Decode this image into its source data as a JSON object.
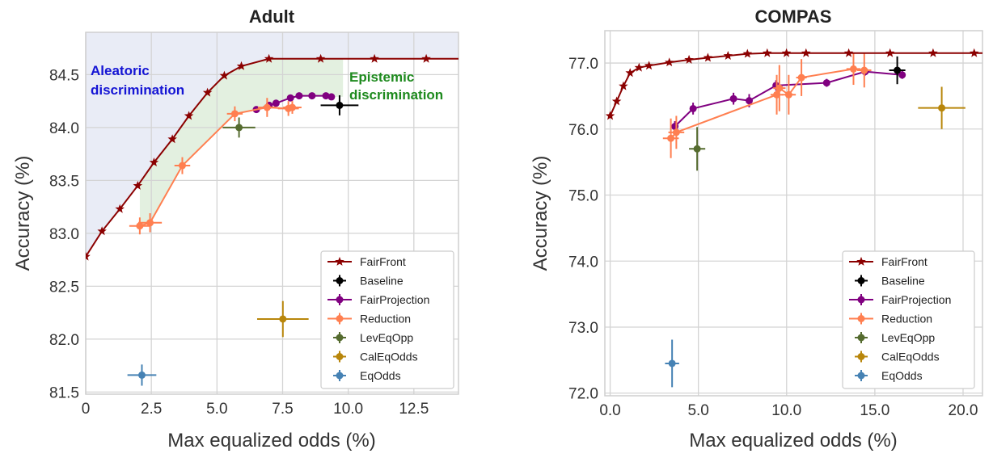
{
  "chart_data": [
    {
      "type": "scatter",
      "title": "Adult",
      "xlabel": "Max equalized odds (%)",
      "ylabel": "Accuracy (%)",
      "xlim": [
        0,
        14.2
      ],
      "ylim": [
        81.48,
        84.9
      ],
      "xticks": [
        0,
        2.5,
        5.0,
        7.5,
        10.0,
        12.5
      ],
      "xtick_labels": [
        "0",
        "2.5",
        "5.0",
        "7.5",
        "10.0",
        "12.5"
      ],
      "yticks": [
        81.5,
        82.0,
        82.5,
        83.0,
        83.5,
        84.0,
        84.5
      ],
      "ytick_labels": [
        "81.5",
        "82.0",
        "82.5",
        "83.0",
        "83.5",
        "84.0",
        "84.5"
      ],
      "grid": true,
      "legend_position": "bottom-right",
      "annotations": [
        {
          "text": [
            "Aleatoric",
            "discrimination"
          ],
          "color": "#1414d4"
        },
        {
          "text": [
            "Epistemic",
            "discrimination"
          ],
          "color": "#1e8a1e"
        }
      ],
      "shading": {
        "aleatoric_color": "#e9ecf6",
        "epistemic_color": "#e3f0e0"
      },
      "series": [
        {
          "name": "FairFront",
          "color": "#8b0000",
          "marker": "star",
          "line": true,
          "x": [
            0,
            0.62,
            1.3,
            1.98,
            2.6,
            3.3,
            3.93,
            4.64,
            5.28,
            5.93,
            6.98,
            8.95,
            11.0,
            12.97,
            14.2
          ],
          "y": [
            82.78,
            83.02,
            83.23,
            83.45,
            83.67,
            83.89,
            84.11,
            84.33,
            84.49,
            84.58,
            84.65,
            84.65,
            84.65,
            84.65,
            84.65
          ],
          "markers_skip_last": true
        },
        {
          "name": "Baseline",
          "color": "#000000",
          "marker": "circle",
          "line": false,
          "x": [
            9.67
          ],
          "y": [
            84.21
          ],
          "xerr": [
            0.72
          ],
          "yerr": [
            0.095
          ]
        },
        {
          "name": "FairProjection",
          "color": "#800080",
          "marker": "circle",
          "line": true,
          "x": [
            6.5,
            6.99,
            7.25,
            7.8,
            8.13,
            8.62,
            9.15,
            9.36
          ],
          "y": [
            84.17,
            84.21,
            84.23,
            84.28,
            84.3,
            84.3,
            84.3,
            84.29
          ]
        },
        {
          "name": "Reduction",
          "color": "#ff7f50",
          "marker": "circle",
          "line": true,
          "x": [
            2.06,
            2.45,
            3.68,
            5.68,
            6.91,
            7.72,
            7.87
          ],
          "y": [
            83.07,
            83.1,
            83.64,
            84.13,
            84.19,
            84.18,
            84.19
          ],
          "xerr": [
            0.4,
            0.45,
            0.3,
            0.3,
            0.35,
            0.4,
            0.35
          ],
          "yerr": [
            0.08,
            0.09,
            0.08,
            0.07,
            0.09,
            0.07,
            0.06
          ]
        },
        {
          "name": "LevEqOpp",
          "color": "#556b2f",
          "marker": "circle",
          "line": false,
          "x": [
            5.84
          ],
          "y": [
            84.0
          ],
          "xerr": [
            0.62
          ],
          "yerr": [
            0.095
          ]
        },
        {
          "name": "CalEqOdds",
          "color": "#b8860b",
          "marker": "circle",
          "line": false,
          "x": [
            7.51
          ],
          "y": [
            82.19
          ],
          "xerr": [
            0.98
          ],
          "yerr": [
            0.17
          ]
        },
        {
          "name": "EqOdds",
          "color": "#4682b4",
          "marker": "circle",
          "line": false,
          "x": [
            2.14
          ],
          "y": [
            81.66
          ],
          "xerr": [
            0.55
          ],
          "yerr": [
            0.1
          ]
        }
      ]
    },
    {
      "type": "scatter",
      "title": "COMPAS",
      "xlabel": "Max equalized odds (%)",
      "ylabel": "Accuracy (%)",
      "xlim": [
        -0.3,
        21.1
      ],
      "ylim": [
        71.96,
        77.49
      ],
      "xticks": [
        0,
        5,
        10,
        15,
        20
      ],
      "xtick_labels": [
        "0.0",
        "5.0",
        "10.0",
        "15.0",
        "20.0"
      ],
      "yticks": [
        72,
        73,
        74,
        75,
        76,
        77
      ],
      "ytick_labels": [
        "72.0",
        "73.0",
        "74.0",
        "75.0",
        "76.0",
        "77.0"
      ],
      "grid": true,
      "legend_position": "bottom-right",
      "series": [
        {
          "name": "FairFront",
          "color": "#8b0000",
          "marker": "star",
          "line": true,
          "x": [
            0,
            0.37,
            0.75,
            1.13,
            1.64,
            2.2,
            3.35,
            4.47,
            5.54,
            6.68,
            7.78,
            8.9,
            9.99,
            11.1,
            13.52,
            15.86,
            18.3,
            20.63,
            21.1
          ],
          "y": [
            76.2,
            76.42,
            76.65,
            76.85,
            76.93,
            76.96,
            77.01,
            77.05,
            77.08,
            77.11,
            77.14,
            77.15,
            77.15,
            77.15,
            77.15,
            77.15,
            77.15,
            77.15,
            77.15
          ],
          "markers_skip_last": true
        },
        {
          "name": "Baseline",
          "color": "#000000",
          "marker": "circle",
          "line": false,
          "x": [
            16.27
          ],
          "y": [
            76.89
          ],
          "xerr": [
            0.46
          ],
          "yerr": [
            0.21
          ]
        },
        {
          "name": "FairProjection",
          "color": "#800080",
          "marker": "circle",
          "line": true,
          "x": [
            3.67,
            4.7,
            6.99,
            7.88,
            9.4,
            12.27,
            14.45,
            16.55
          ],
          "y": [
            76.04,
            76.31,
            76.46,
            76.43,
            76.66,
            76.7,
            76.87,
            76.82
          ],
          "xerr": [
            0.1,
            0.1,
            0.1,
            0.1,
            0.1,
            0.1,
            0.1,
            0.1
          ],
          "yerr": [
            0.08,
            0.09,
            0.09,
            0.1,
            0.08,
            0.06,
            0.06,
            0.06
          ]
        },
        {
          "name": "Reduction",
          "color": "#ff7f50",
          "marker": "circle",
          "line": true,
          "x": [
            3.44,
            3.75,
            9.44,
            9.59,
            10.12,
            10.84,
            13.79,
            14.4
          ],
          "y": [
            75.86,
            75.95,
            76.52,
            76.62,
            76.52,
            76.78,
            76.91,
            76.89
          ],
          "xerr": [
            0.45,
            0.45,
            0.35,
            0.35,
            0.4,
            0.3,
            0.4,
            0.4
          ],
          "yerr": [
            0.3,
            0.25,
            0.3,
            0.35,
            0.3,
            0.28,
            0.24,
            0.26
          ]
        },
        {
          "name": "LevEqOpp",
          "color": "#556b2f",
          "marker": "circle",
          "line": false,
          "x": [
            4.93
          ],
          "y": [
            75.7
          ],
          "xerr": [
            0.46
          ],
          "yerr": [
            0.33
          ]
        },
        {
          "name": "CalEqOdds",
          "color": "#b8860b",
          "marker": "circle",
          "line": false,
          "x": [
            18.79
          ],
          "y": [
            76.32
          ],
          "xerr": [
            1.34
          ],
          "yerr": [
            0.32
          ]
        },
        {
          "name": "EqOdds",
          "color": "#4682b4",
          "marker": "circle",
          "line": false,
          "x": [
            3.51
          ],
          "y": [
            72.45
          ],
          "xerr": [
            0.4
          ],
          "yerr": [
            0.36
          ]
        }
      ]
    }
  ]
}
